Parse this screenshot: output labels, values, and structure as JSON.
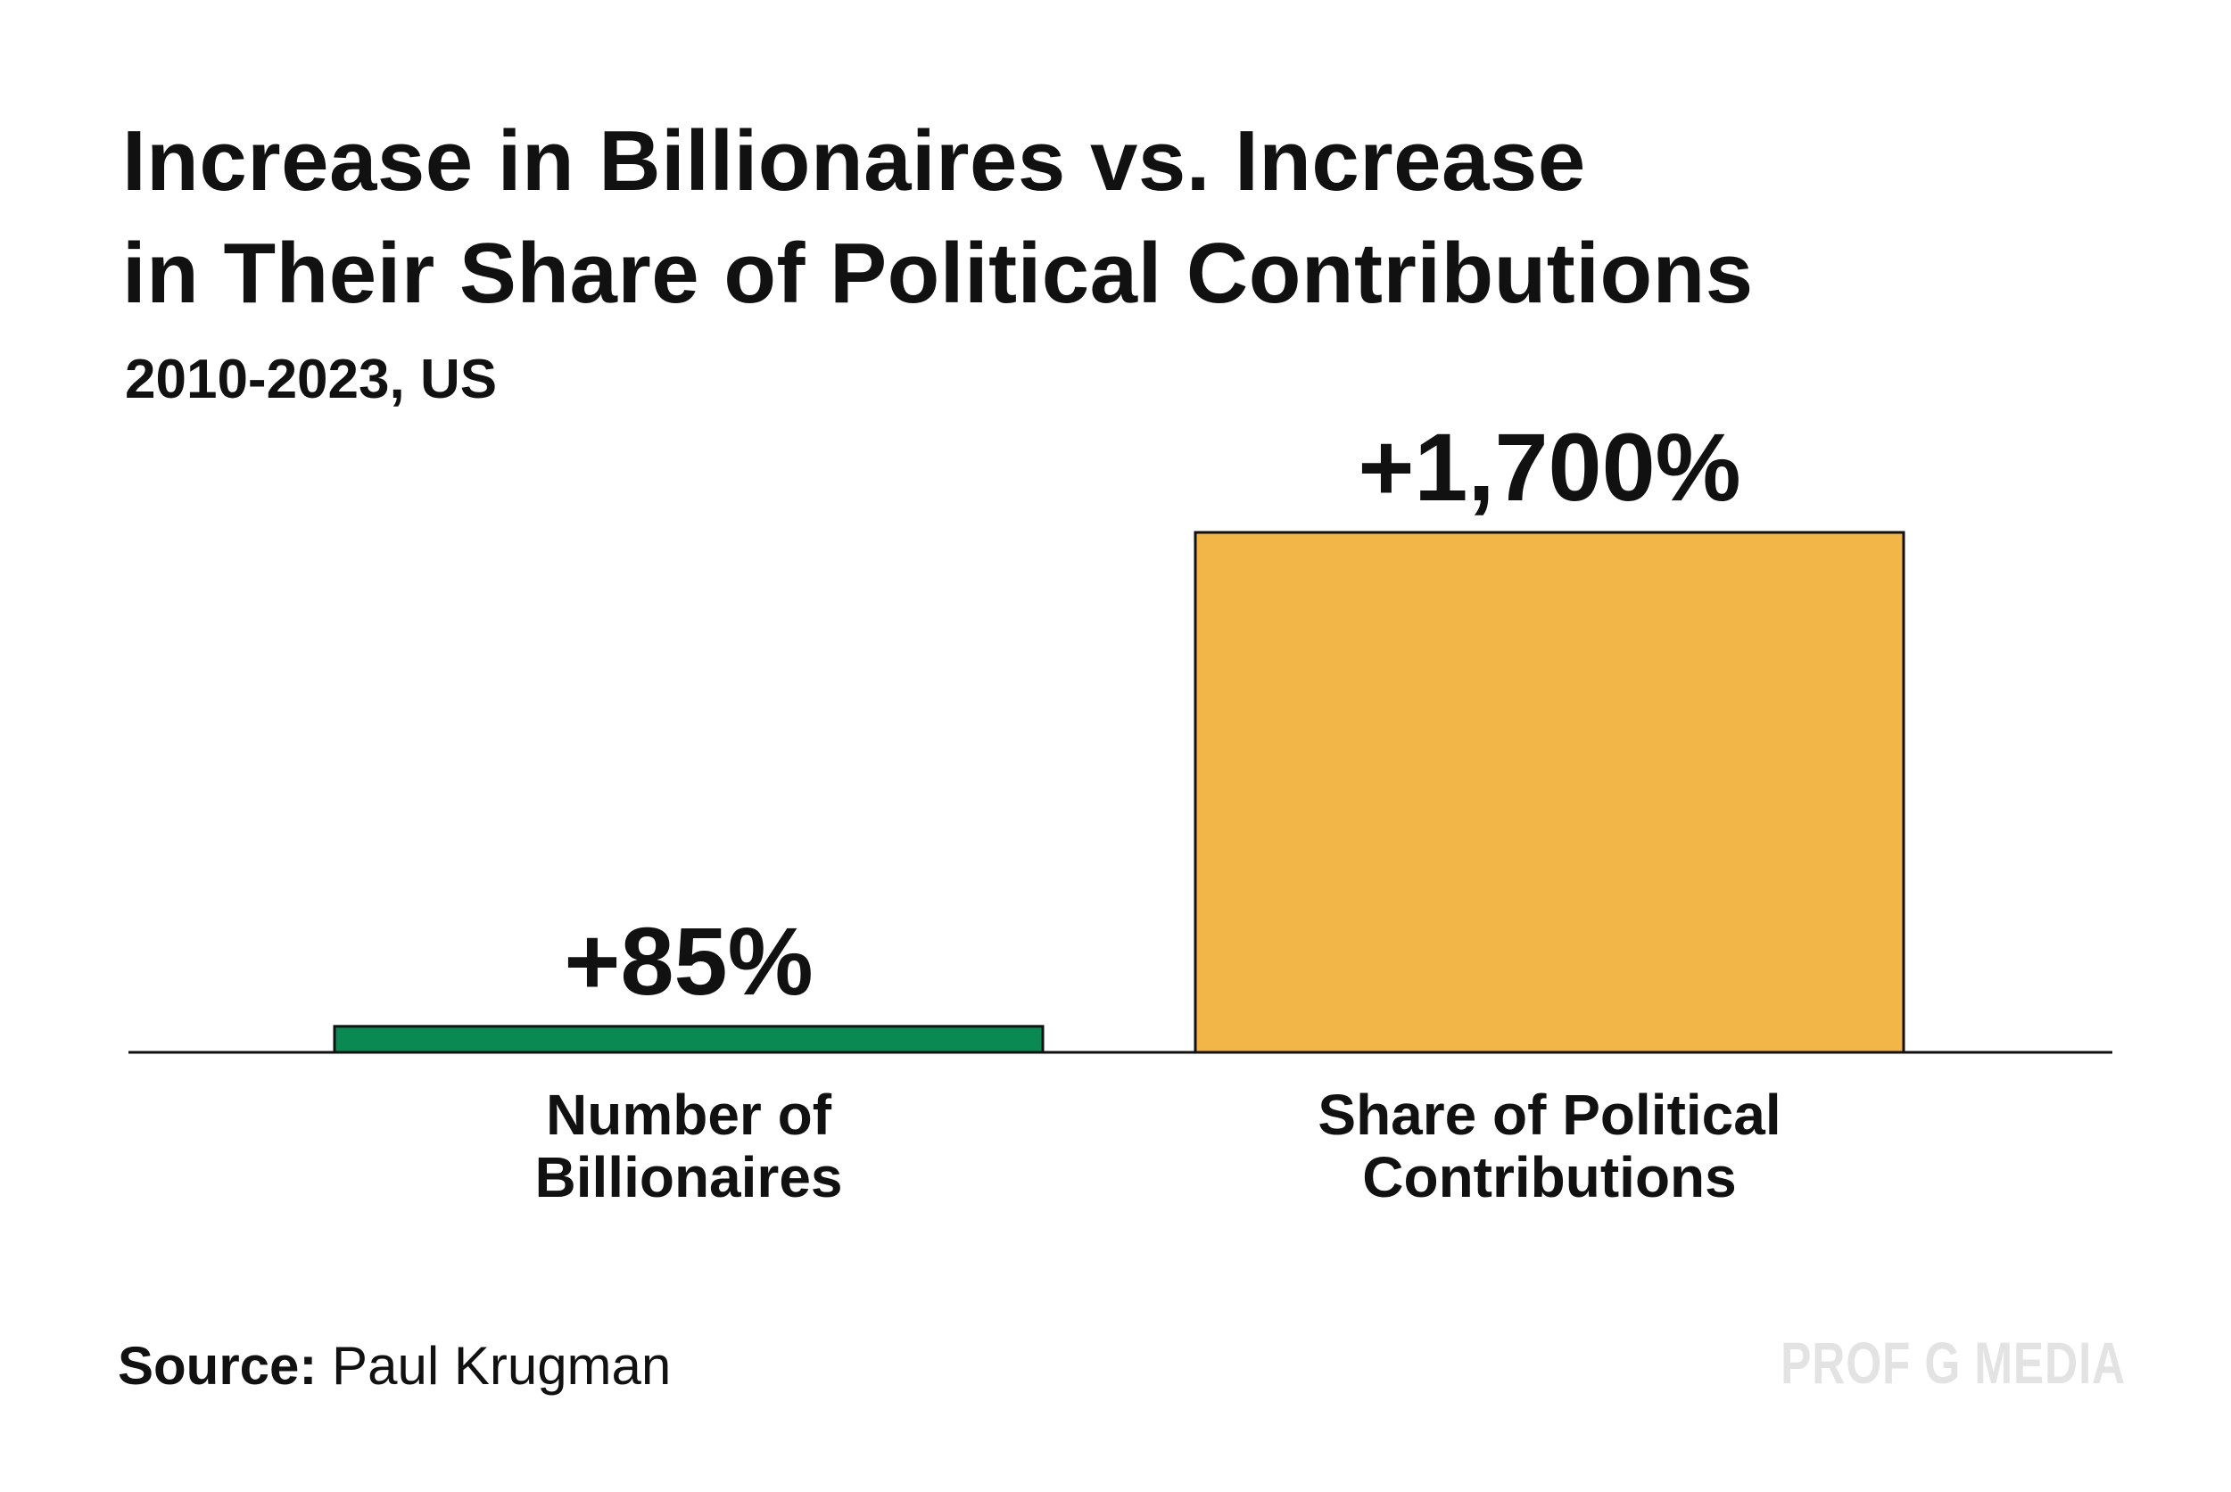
{
  "title_lines": [
    "Increase in Billionaires vs. Increase",
    "in Their Share of Political Contributions"
  ],
  "subtitle": "2010-2023, US",
  "source": {
    "label": "Source:",
    "text": " Paul Krugman"
  },
  "brand": "PROF G MEDIA",
  "colors": {
    "billionaires": "#0a8a52",
    "contributions": "#f2b547",
    "outline": "#111111"
  },
  "chart_data": {
    "type": "bar",
    "categories": [
      [
        "Number of",
        "Billionaires"
      ],
      [
        "Share of Political",
        "Contributions"
      ]
    ],
    "values": [
      85,
      1700
    ],
    "value_labels": [
      "+85%",
      "+1,700%"
    ],
    "ylim": [
      0,
      1700
    ],
    "grid": false
  }
}
